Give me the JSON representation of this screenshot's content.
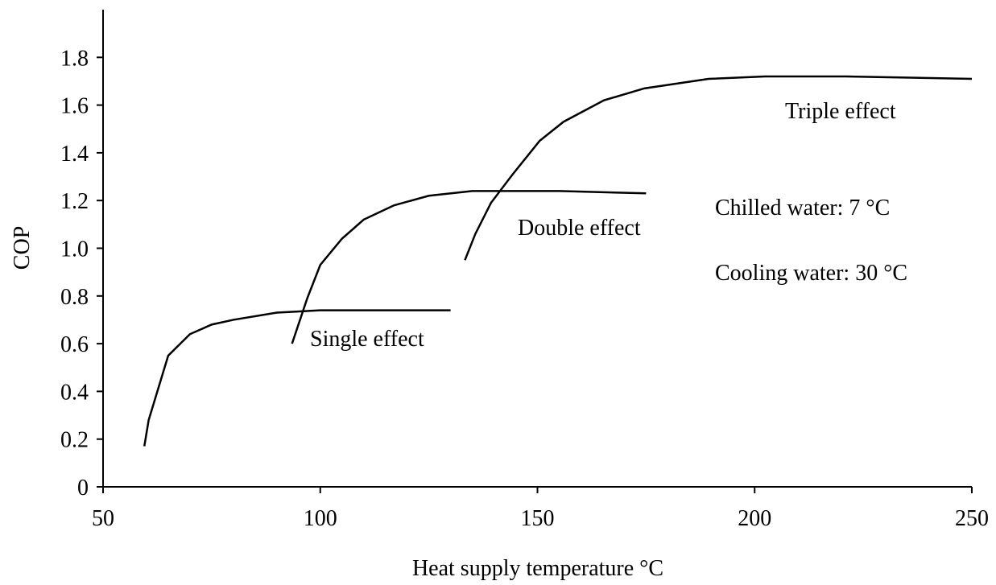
{
  "chart_data": {
    "type": "line",
    "xlabel": "Heat supply temperature °C",
    "ylabel": "COP",
    "xlim": [
      50,
      250
    ],
    "xticks": [
      50,
      100,
      150,
      200,
      250
    ],
    "ylim": [
      0,
      2
    ],
    "yticks": [
      0,
      0.2,
      0.4,
      0.6,
      0.8,
      {
        "value": 1,
        "label": "1.0"
      },
      1.2,
      1.4,
      1.6,
      1.8
    ],
    "grid": false,
    "series": [
      {
        "name": "Single effect",
        "color": "#000000",
        "x": [
          59.5,
          60.5,
          65,
          70,
          75,
          80,
          90,
          100,
          130
        ],
        "values": [
          0.17,
          0.28,
          0.55,
          0.64,
          0.68,
          0.7,
          0.73,
          0.74,
          0.74
        ]
      },
      {
        "name": "Double effect",
        "color": "#000000",
        "x": [
          93.5,
          97,
          100,
          105,
          110,
          117,
          125,
          135,
          155,
          175
        ],
        "values": [
          0.6,
          0.79,
          0.93,
          1.04,
          1.12,
          1.18,
          1.22,
          1.24,
          1.24,
          1.23
        ]
      },
      {
        "name": "Triple effect",
        "color": "#000000",
        "x": [
          133.3,
          135.7,
          139.3,
          144.3,
          150.5,
          156,
          165.3,
          174.6,
          189.4,
          202.4,
          220.9,
          250
        ],
        "values": [
          0.95,
          1.06,
          1.19,
          1.31,
          1.45,
          1.53,
          1.62,
          1.67,
          1.71,
          1.72,
          1.72,
          1.71
        ]
      }
    ],
    "annotations": [
      "Chilled water: 7 °C",
      "Cooling water: 30 °C"
    ]
  }
}
